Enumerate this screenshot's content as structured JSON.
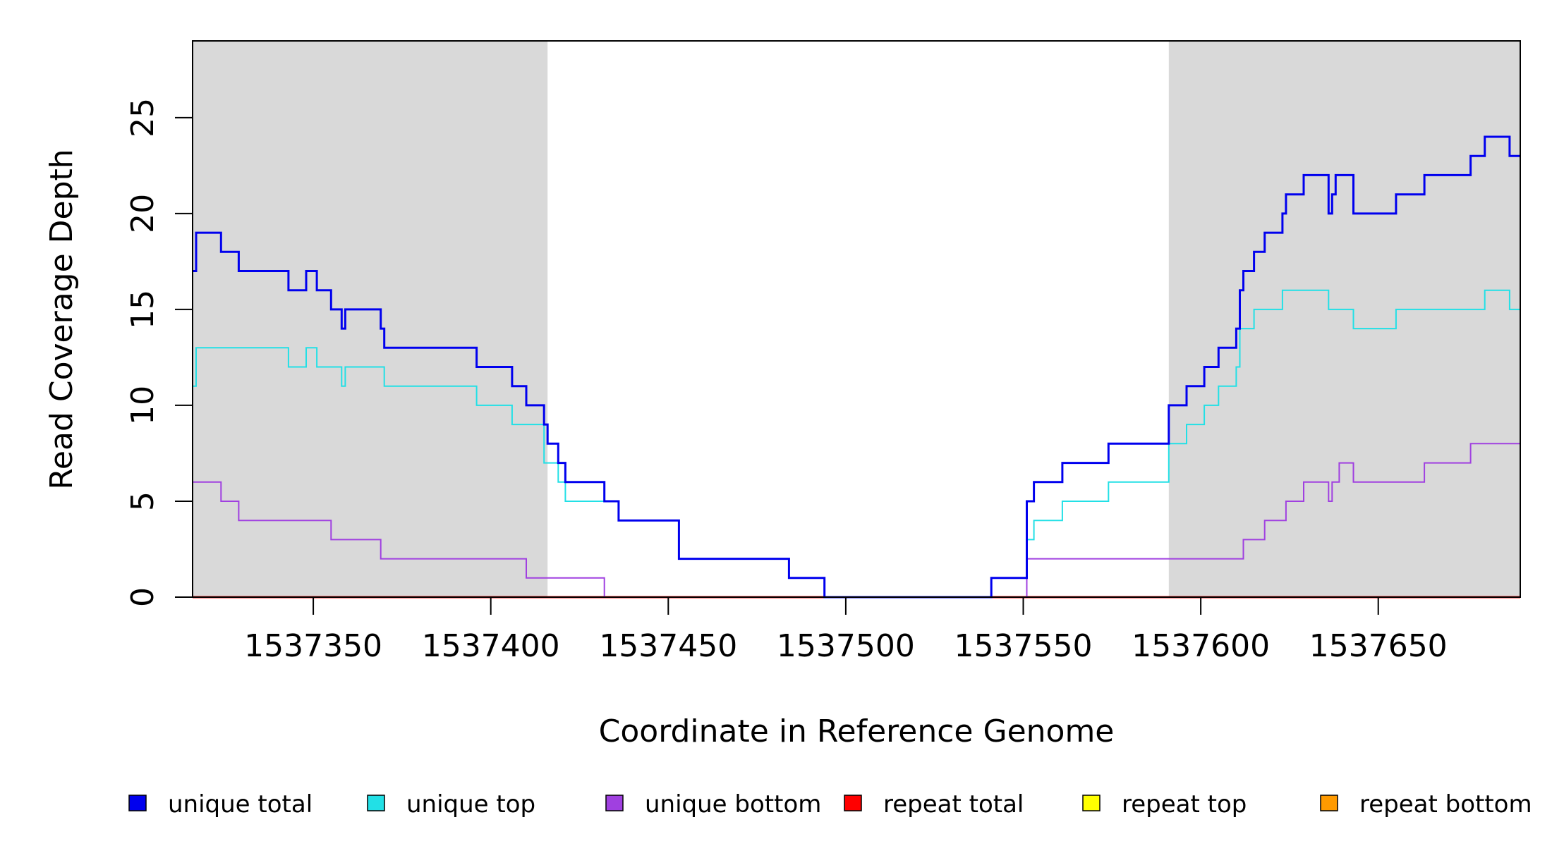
{
  "chart_data": {
    "type": "line",
    "title": "",
    "xlabel": "Coordinate in Reference Genome",
    "ylabel": "Read Coverage Depth",
    "xlim": [
      1537316,
      1537690
    ],
    "ylim": [
      0,
      29
    ],
    "x_ticks": [
      1537350,
      1537400,
      1537450,
      1537500,
      1537550,
      1537600,
      1537650
    ],
    "y_ticks": [
      0,
      5,
      10,
      15,
      20,
      25
    ],
    "grid": false,
    "shaded_regions": [
      {
        "start": 1537316,
        "end": 1537416,
        "color": "#d9d9d9"
      },
      {
        "start": 1537591,
        "end": 1537690,
        "color": "#d9d9d9"
      }
    ],
    "legend_position": "bottom",
    "series": [
      {
        "name": "unique total",
        "color": "#0000ee",
        "step": [
          [
            1537316,
            17
          ],
          [
            1537317,
            19
          ],
          [
            1537324,
            18
          ],
          [
            1537329,
            17
          ],
          [
            1537343,
            16
          ],
          [
            1537348,
            17
          ],
          [
            1537351,
            16
          ],
          [
            1537355,
            15
          ],
          [
            1537358,
            14
          ],
          [
            1537359,
            15
          ],
          [
            1537369,
            14
          ],
          [
            1537370,
            13
          ],
          [
            1537396,
            12
          ],
          [
            1537406,
            11
          ],
          [
            1537410,
            10
          ],
          [
            1537415,
            9
          ],
          [
            1537416,
            8
          ],
          [
            1537419,
            7
          ],
          [
            1537421,
            6
          ],
          [
            1537432,
            5
          ],
          [
            1537436,
            4
          ],
          [
            1537453,
            2
          ],
          [
            1537484,
            1
          ],
          [
            1537494,
            0
          ],
          [
            1537541,
            1
          ],
          [
            1537551,
            5
          ],
          [
            1537553,
            6
          ],
          [
            1537561,
            7
          ],
          [
            1537574,
            8
          ],
          [
            1537591,
            10
          ],
          [
            1537596,
            11
          ],
          [
            1537601,
            12
          ],
          [
            1537605,
            13
          ],
          [
            1537610,
            14
          ],
          [
            1537611,
            16
          ],
          [
            1537612,
            17
          ],
          [
            1537615,
            18
          ],
          [
            1537618,
            19
          ],
          [
            1537623,
            20
          ],
          [
            1537624,
            21
          ],
          [
            1537629,
            22
          ],
          [
            1537636,
            20
          ],
          [
            1537637,
            21
          ],
          [
            1537638,
            22
          ],
          [
            1537643,
            20
          ],
          [
            1537655,
            21
          ],
          [
            1537663,
            22
          ],
          [
            1537676,
            23
          ],
          [
            1537680,
            24
          ],
          [
            1537687,
            23
          ],
          [
            1537690,
            23
          ]
        ]
      },
      {
        "name": "unique top",
        "color": "#22e0e6",
        "step": [
          [
            1537316,
            11
          ],
          [
            1537317,
            13
          ],
          [
            1537343,
            12
          ],
          [
            1537348,
            13
          ],
          [
            1537351,
            12
          ],
          [
            1537358,
            11
          ],
          [
            1537359,
            12
          ],
          [
            1537370,
            11
          ],
          [
            1537396,
            10
          ],
          [
            1537406,
            9
          ],
          [
            1537415,
            7
          ],
          [
            1537419,
            6
          ],
          [
            1537421,
            5
          ],
          [
            1537432,
            5
          ],
          [
            1537436,
            4
          ],
          [
            1537453,
            2
          ],
          [
            1537484,
            1
          ],
          [
            1537494,
            0
          ],
          [
            1537541,
            1
          ],
          [
            1537551,
            3
          ],
          [
            1537553,
            4
          ],
          [
            1537561,
            5
          ],
          [
            1537574,
            6
          ],
          [
            1537591,
            8
          ],
          [
            1537596,
            9
          ],
          [
            1537601,
            10
          ],
          [
            1537605,
            11
          ],
          [
            1537610,
            12
          ],
          [
            1537611,
            14
          ],
          [
            1537615,
            15
          ],
          [
            1537623,
            16
          ],
          [
            1537636,
            15
          ],
          [
            1537643,
            14
          ],
          [
            1537655,
            15
          ],
          [
            1537680,
            16
          ],
          [
            1537687,
            15
          ],
          [
            1537690,
            15
          ]
        ]
      },
      {
        "name": "unique bottom",
        "color": "#a040e0",
        "step": [
          [
            1537316,
            6
          ],
          [
            1537324,
            5
          ],
          [
            1537329,
            4
          ],
          [
            1537355,
            3
          ],
          [
            1537369,
            2
          ],
          [
            1537410,
            1
          ],
          [
            1537432,
            0
          ],
          [
            1537551,
            2
          ],
          [
            1537612,
            3
          ],
          [
            1537618,
            4
          ],
          [
            1537624,
            5
          ],
          [
            1537629,
            6
          ],
          [
            1537636,
            5
          ],
          [
            1537637,
            6
          ],
          [
            1537639,
            7
          ],
          [
            1537643,
            6
          ],
          [
            1537663,
            7
          ],
          [
            1537676,
            8
          ],
          [
            1537690,
            8
          ]
        ]
      },
      {
        "name": "repeat total",
        "color": "#ff0000",
        "step": [
          [
            1537316,
            0
          ],
          [
            1537690,
            0
          ]
        ]
      },
      {
        "name": "repeat top",
        "color": "#ffff00",
        "step": [
          [
            1537316,
            0
          ],
          [
            1537690,
            0
          ]
        ]
      },
      {
        "name": "repeat bottom",
        "color": "#ff9a00",
        "step": [
          [
            1537316,
            0
          ],
          [
            1537690,
            0
          ]
        ]
      }
    ]
  }
}
